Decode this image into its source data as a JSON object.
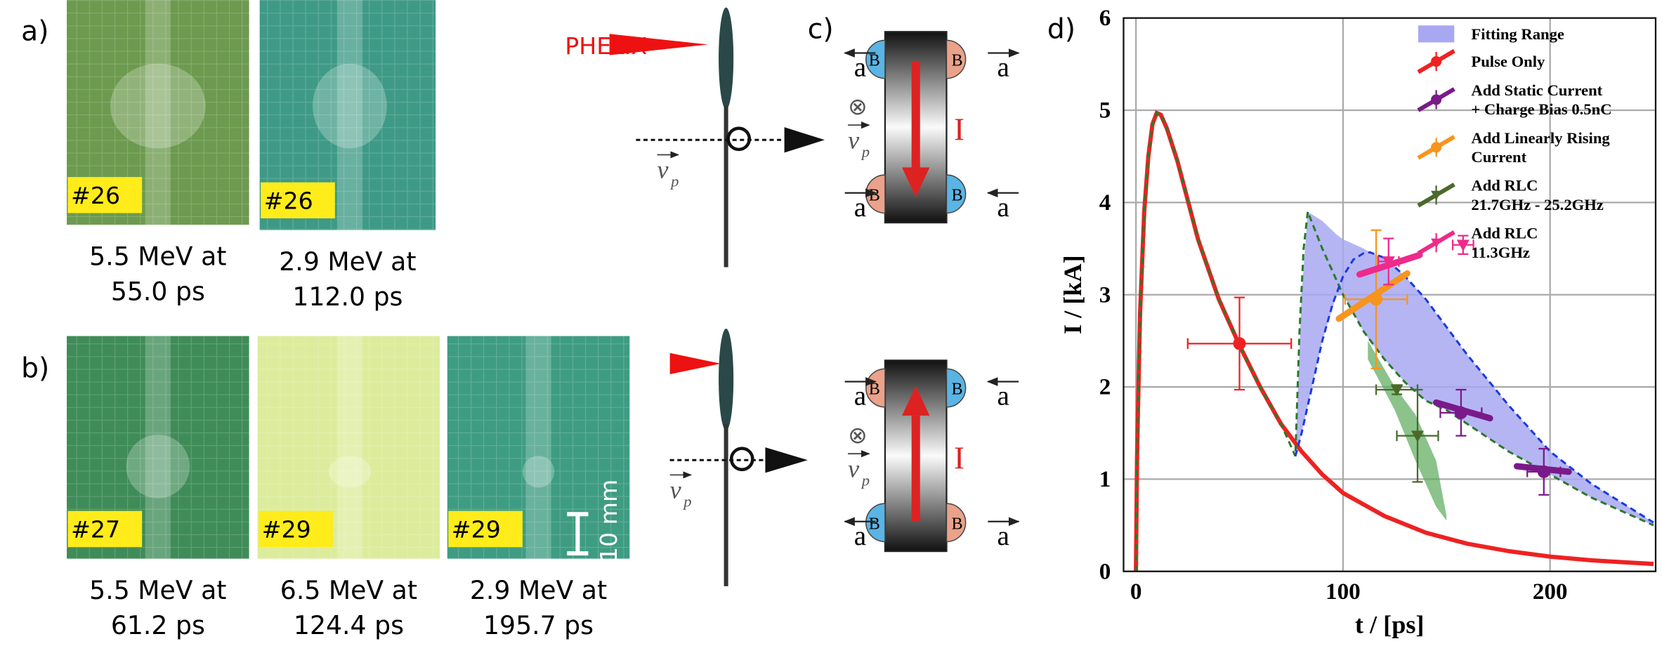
{
  "figure": {
    "panel_labels": [
      "a)",
      "b)",
      "c)",
      "d)"
    ],
    "photos": [
      {
        "tag": "#26",
        "caption": [
          "5.5 MeV at",
          "55.0 ps"
        ],
        "color": "#6c9a4e"
      },
      {
        "tag": "#26",
        "caption": [
          "2.9 MeV at",
          "112.0 ps"
        ],
        "color": "#3e9a86"
      },
      {
        "tag": "#27",
        "caption": [
          "5.5 MeV at",
          "61.2 ps"
        ],
        "color": "#3f8c58"
      },
      {
        "tag": "#29",
        "caption": [
          "6.5 MeV at",
          "124.4 ps"
        ],
        "color": "#dcec9c"
      },
      {
        "tag": "#29",
        "caption": [
          "2.9 MeV at",
          "195.7 ps"
        ],
        "color": "#3e9c82"
      }
    ],
    "scale_bar": "10 mm",
    "laser": "PHELIX",
    "velocity": "v",
    "velocity_subscript": "p",
    "expansion": "a",
    "field": "B",
    "current": "I",
    "into_page": "⊗"
  },
  "chart_data": {
    "type": "line",
    "xlabel": "t / [ps]",
    "ylabel": "I / [kA]",
    "xlim": [
      -6,
      251
    ],
    "ylim": [
      0,
      6
    ],
    "xticks": [
      0,
      100,
      200
    ],
    "yticks": [
      0,
      1,
      2,
      3,
      4,
      5,
      6
    ],
    "grid": true,
    "legend": "upper right",
    "fitting_range": {
      "name": "Fitting Range",
      "color": "#a8a8f2",
      "x": [
        77,
        80,
        83,
        90,
        97,
        100,
        110,
        113,
        120,
        130,
        140,
        150,
        160,
        180,
        200,
        220,
        250
      ],
      "upper": [
        1.25,
        3.0,
        3.9,
        3.8,
        3.65,
        3.6,
        3.5,
        3.46,
        3.4,
        3.2,
        2.95,
        2.65,
        2.35,
        1.8,
        1.3,
        0.95,
        0.53
      ],
      "lower": [
        1.25,
        1.5,
        1.8,
        2.5,
        3.0,
        3.0,
        2.6,
        2.5,
        2.3,
        2.05,
        1.85,
        1.75,
        1.6,
        1.3,
        1.05,
        0.8,
        0.5
      ]
    },
    "fit_curves": [
      {
        "color": "#2a7a2a",
        "x": [
          0,
          0.5,
          1,
          2,
          4,
          6,
          8,
          10,
          12,
          15,
          20,
          30,
          40,
          50,
          60,
          70,
          77,
          79,
          81,
          83,
          90,
          100,
          110,
          120,
          130,
          140,
          150,
          160,
          180,
          200,
          220,
          250
        ],
        "values": [
          0,
          1.2,
          1.8,
          2.8,
          3.9,
          4.5,
          4.85,
          4.97,
          4.95,
          4.8,
          4.45,
          3.6,
          2.95,
          2.45,
          2.0,
          1.6,
          1.25,
          2.6,
          3.5,
          3.9,
          3.5,
          3.0,
          2.6,
          2.3,
          2.05,
          1.85,
          1.75,
          1.6,
          1.3,
          1.05,
          0.8,
          0.5
        ]
      },
      {
        "color": "#1a3ae0",
        "x": [
          77,
          80,
          85,
          90,
          95,
          100,
          105,
          110,
          113,
          120,
          130,
          140,
          150,
          160,
          180,
          200,
          220,
          250
        ],
        "values": [
          1.25,
          1.5,
          2.0,
          2.5,
          2.9,
          3.2,
          3.38,
          3.45,
          3.46,
          3.4,
          3.2,
          2.95,
          2.65,
          2.35,
          1.8,
          1.3,
          0.95,
          0.53
        ]
      }
    ],
    "series": [
      {
        "name": "Pulse Only",
        "color": "#ee2222",
        "marker": "circle",
        "x": [
          50
        ],
        "values": [
          2.47
        ],
        "xerr": [
          25
        ],
        "yerr": [
          0.5
        ],
        "curve_x": [
          0,
          0.5,
          1,
          2,
          4,
          6,
          8,
          10,
          12,
          15,
          20,
          30,
          40,
          50,
          60,
          70,
          80,
          90,
          100,
          120,
          140,
          160,
          180,
          200,
          220,
          250
        ],
        "curve": [
          0,
          1.2,
          1.8,
          2.8,
          3.9,
          4.5,
          4.85,
          4.97,
          4.95,
          4.8,
          4.45,
          3.6,
          2.95,
          2.45,
          2.0,
          1.6,
          1.3,
          1.05,
          0.85,
          0.6,
          0.42,
          0.3,
          0.22,
          0.16,
          0.12,
          0.08
        ]
      },
      {
        "name": "Add Static Current\n+ Charge Bias 0.5nC",
        "color": "#7a1a8a",
        "marker": "circle",
        "x": [
          157,
          197
        ],
        "values": [
          1.72,
          1.08
        ],
        "xerr": [
          10,
          8
        ],
        "yerr": [
          0.25,
          0.25
        ],
        "trend": [
          [
            145,
            1.83,
            171,
            1.66
          ],
          [
            184,
            1.14,
            209,
            1.08
          ]
        ]
      },
      {
        "name": "Add Linearly Rising\nCurrent",
        "color": "#f7941d",
        "marker": "circle",
        "x": [
          116
        ],
        "values": [
          2.95
        ],
        "xerr": [
          15
        ],
        "yerr": [
          0.75
        ],
        "trend": [
          [
            98,
            2.74,
            131,
            3.23
          ]
        ]
      },
      {
        "name": "Add RLC\n21.7GHz - 25.2GHz",
        "color": "#4a6a2a",
        "marker": "triangle",
        "x": [
          126,
          136
        ],
        "values": [
          1.97,
          1.47
        ],
        "xerr": [
          10,
          10
        ],
        "yerr": [
          0.05,
          0.5
        ],
        "band": {
          "color": "#5aaa5a",
          "x": [
            112,
            125,
            135,
            145,
            150
          ],
          "upper": [
            2.5,
            2.0,
            1.7,
            1.2,
            0.6
          ],
          "lower": [
            2.3,
            1.75,
            1.2,
            0.7,
            0.55
          ]
        }
      },
      {
        "name": "Add RLC\n11.3GHz",
        "color": "#ee2a8a",
        "marker": "triangle",
        "x": [
          122,
          158
        ],
        "values": [
          3.36,
          3.54
        ],
        "xerr": [
          5,
          5
        ],
        "yerr": [
          0.25,
          0.1
        ],
        "trend": [
          [
            108,
            3.22,
            137,
            3.43
          ]
        ]
      }
    ]
  }
}
